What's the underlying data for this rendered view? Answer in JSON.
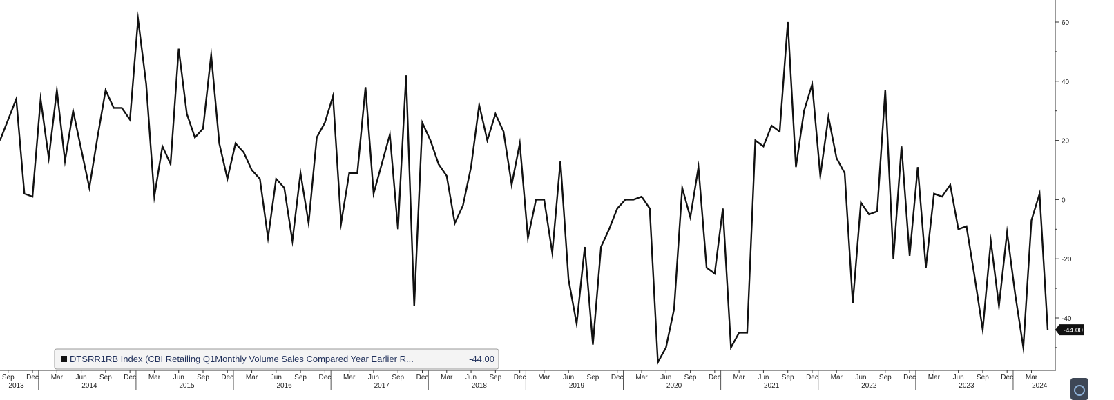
{
  "chart_data": {
    "type": "line",
    "title": "",
    "xlabel": "",
    "ylabel": "",
    "ylim": [
      -55,
      67
    ],
    "y_ticks": [
      -40,
      -20,
      0,
      20,
      40,
      60
    ],
    "y_tick_labels": [
      "-40",
      "-20",
      "0",
      "20",
      "40",
      "60"
    ],
    "grid": false,
    "legend_position": "bottom-left",
    "line_color": "#111111",
    "x_range": [
      "2013-08",
      "2024-05"
    ],
    "month_ticks": [
      {
        "date": "2013-09",
        "label": "Sep"
      },
      {
        "date": "2013-12",
        "label": "Dec"
      },
      {
        "date": "2014-03",
        "label": "Mar"
      },
      {
        "date": "2014-06",
        "label": "Jun"
      },
      {
        "date": "2014-09",
        "label": "Sep"
      },
      {
        "date": "2014-12",
        "label": "Dec"
      },
      {
        "date": "2015-03",
        "label": "Mar"
      },
      {
        "date": "2015-06",
        "label": "Jun"
      },
      {
        "date": "2015-09",
        "label": "Sep"
      },
      {
        "date": "2015-12",
        "label": "Dec"
      },
      {
        "date": "2016-03",
        "label": "Mar"
      },
      {
        "date": "2016-06",
        "label": "Jun"
      },
      {
        "date": "2016-09",
        "label": "Sep"
      },
      {
        "date": "2016-12",
        "label": "Dec"
      },
      {
        "date": "2017-03",
        "label": "Mar"
      },
      {
        "date": "2017-06",
        "label": "Jun"
      },
      {
        "date": "2017-09",
        "label": "Sep"
      },
      {
        "date": "2017-12",
        "label": "Dec"
      },
      {
        "date": "2018-03",
        "label": "Mar"
      },
      {
        "date": "2018-06",
        "label": "Jun"
      },
      {
        "date": "2018-09",
        "label": "Sep"
      },
      {
        "date": "2018-12",
        "label": "Dec"
      },
      {
        "date": "2019-03",
        "label": "Mar"
      },
      {
        "date": "2019-06",
        "label": "Jun"
      },
      {
        "date": "2019-09",
        "label": "Sep"
      },
      {
        "date": "2019-12",
        "label": "Dec"
      },
      {
        "date": "2020-03",
        "label": "Mar"
      },
      {
        "date": "2020-06",
        "label": "Jun"
      },
      {
        "date": "2020-09",
        "label": "Sep"
      },
      {
        "date": "2020-12",
        "label": "Dec"
      },
      {
        "date": "2021-03",
        "label": "Mar"
      },
      {
        "date": "2021-06",
        "label": "Jun"
      },
      {
        "date": "2021-09",
        "label": "Sep"
      },
      {
        "date": "2021-12",
        "label": "Dec"
      },
      {
        "date": "2022-03",
        "label": "Mar"
      },
      {
        "date": "2022-06",
        "label": "Jun"
      },
      {
        "date": "2022-09",
        "label": "Sep"
      },
      {
        "date": "2022-12",
        "label": "Dec"
      },
      {
        "date": "2023-03",
        "label": "Mar"
      },
      {
        "date": "2023-06",
        "label": "Jun"
      },
      {
        "date": "2023-09",
        "label": "Sep"
      },
      {
        "date": "2023-12",
        "label": "Dec"
      },
      {
        "date": "2024-03",
        "label": "Mar"
      }
    ],
    "year_labels": [
      {
        "date": "2013-10",
        "label": "2013"
      },
      {
        "date": "2014-07",
        "label": "2014"
      },
      {
        "date": "2015-07",
        "label": "2015"
      },
      {
        "date": "2016-07",
        "label": "2016"
      },
      {
        "date": "2017-07",
        "label": "2017"
      },
      {
        "date": "2018-07",
        "label": "2018"
      },
      {
        "date": "2019-07",
        "label": "2019"
      },
      {
        "date": "2020-07",
        "label": "2020"
      },
      {
        "date": "2021-07",
        "label": "2021"
      },
      {
        "date": "2022-07",
        "label": "2022"
      },
      {
        "date": "2023-07",
        "label": "2023"
      },
      {
        "date": "2024-04",
        "label": "2024"
      }
    ],
    "series": [
      {
        "name": "DTSRR1RB Index (CBI Retailing Q1Monthly Volume Sales Compared Year Earlier R...",
        "last_value_label": "-44.00",
        "points": [
          [
            "2013-08",
            20
          ],
          [
            "2013-09",
            27
          ],
          [
            "2013-10",
            34
          ],
          [
            "2013-11",
            2
          ],
          [
            "2013-12",
            1
          ],
          [
            "2014-01",
            34
          ],
          [
            "2014-02",
            14
          ],
          [
            "2014-03",
            37
          ],
          [
            "2014-04",
            13
          ],
          [
            "2014-05",
            30
          ],
          [
            "2014-06",
            17
          ],
          [
            "2014-07",
            4
          ],
          [
            "2014-08",
            21
          ],
          [
            "2014-09",
            37
          ],
          [
            "2014-10",
            31
          ],
          [
            "2014-11",
            31
          ],
          [
            "2014-12",
            27
          ],
          [
            "2015-01",
            61
          ],
          [
            "2015-02",
            39
          ],
          [
            "2015-03",
            1
          ],
          [
            "2015-04",
            18
          ],
          [
            "2015-05",
            12
          ],
          [
            "2015-06",
            51
          ],
          [
            "2015-07",
            29
          ],
          [
            "2015-08",
            21
          ],
          [
            "2015-09",
            24
          ],
          [
            "2015-10",
            49
          ],
          [
            "2015-11",
            19
          ],
          [
            "2015-12",
            7
          ],
          [
            "2016-01",
            19
          ],
          [
            "2016-02",
            16
          ],
          [
            "2016-03",
            10
          ],
          [
            "2016-04",
            7
          ],
          [
            "2016-05",
            -13
          ],
          [
            "2016-06",
            7
          ],
          [
            "2016-07",
            4
          ],
          [
            "2016-08",
            -14
          ],
          [
            "2016-09",
            9
          ],
          [
            "2016-10",
            -8
          ],
          [
            "2016-11",
            21
          ],
          [
            "2016-12",
            26
          ],
          [
            "2017-01",
            35
          ],
          [
            "2017-02",
            -8
          ],
          [
            "2017-03",
            9
          ],
          [
            "2017-04",
            9
          ],
          [
            "2017-05",
            38
          ],
          [
            "2017-06",
            2
          ],
          [
            "2017-07",
            12
          ],
          [
            "2017-08",
            22
          ],
          [
            "2017-09",
            -10
          ],
          [
            "2017-10",
            42
          ],
          [
            "2017-11",
            -36
          ],
          [
            "2017-12",
            26
          ],
          [
            "2018-01",
            20
          ],
          [
            "2018-02",
            12
          ],
          [
            "2018-03",
            8
          ],
          [
            "2018-04",
            -8
          ],
          [
            "2018-05",
            -2
          ],
          [
            "2018-06",
            11
          ],
          [
            "2018-07",
            32
          ],
          [
            "2018-08",
            20
          ],
          [
            "2018-09",
            29
          ],
          [
            "2018-10",
            23
          ],
          [
            "2018-11",
            5
          ],
          [
            "2018-12",
            19
          ],
          [
            "2019-01",
            -13
          ],
          [
            "2019-02",
            0
          ],
          [
            "2019-03",
            0
          ],
          [
            "2019-04",
            -18
          ],
          [
            "2019-05",
            13
          ],
          [
            "2019-06",
            -27
          ],
          [
            "2019-07",
            -42
          ],
          [
            "2019-08",
            -16
          ],
          [
            "2019-09",
            -49
          ],
          [
            "2019-10",
            -16
          ],
          [
            "2019-11",
            -10
          ],
          [
            "2019-12",
            -3
          ],
          [
            "2020-01",
            0
          ],
          [
            "2020-02",
            0
          ],
          [
            "2020-03",
            1
          ],
          [
            "2020-04",
            -3
          ],
          [
            "2020-05",
            -55
          ],
          [
            "2020-06",
            -50
          ],
          [
            "2020-07",
            -37
          ],
          [
            "2020-08",
            4
          ],
          [
            "2020-09",
            -6
          ],
          [
            "2020-10",
            11
          ],
          [
            "2020-11",
            -23
          ],
          [
            "2020-12",
            -25
          ],
          [
            "2021-01",
            -3
          ],
          [
            "2021-02",
            -50
          ],
          [
            "2021-03",
            -45
          ],
          [
            "2021-04",
            -45
          ],
          [
            "2021-05",
            20
          ],
          [
            "2021-06",
            18
          ],
          [
            "2021-07",
            25
          ],
          [
            "2021-08",
            23
          ],
          [
            "2021-09",
            60
          ],
          [
            "2021-10",
            11
          ],
          [
            "2021-11",
            30
          ],
          [
            "2021-12",
            39
          ],
          [
            "2022-01",
            8
          ],
          [
            "2022-02",
            28
          ],
          [
            "2022-03",
            14
          ],
          [
            "2022-04",
            9
          ],
          [
            "2022-05",
            -35
          ],
          [
            "2022-06",
            -1
          ],
          [
            "2022-07",
            -5
          ],
          [
            "2022-08",
            -4
          ],
          [
            "2022-09",
            37
          ],
          [
            "2022-10",
            -20
          ],
          [
            "2022-11",
            18
          ],
          [
            "2022-12",
            -19
          ],
          [
            "2023-01",
            11
          ],
          [
            "2023-02",
            -23
          ],
          [
            "2023-03",
            2
          ],
          [
            "2023-04",
            1
          ],
          [
            "2023-05",
            5
          ],
          [
            "2023-06",
            -10
          ],
          [
            "2023-07",
            -9
          ],
          [
            "2023-08",
            -26
          ],
          [
            "2023-09",
            -44
          ],
          [
            "2023-10",
            -14
          ],
          [
            "2023-11",
            -36
          ],
          [
            "2023-12",
            -11
          ],
          [
            "2024-01",
            -32
          ],
          [
            "2024-02",
            -50
          ],
          [
            "2024-03",
            -7
          ],
          [
            "2024-04",
            2
          ],
          [
            "2024-05",
            -44
          ]
        ]
      }
    ]
  }
}
